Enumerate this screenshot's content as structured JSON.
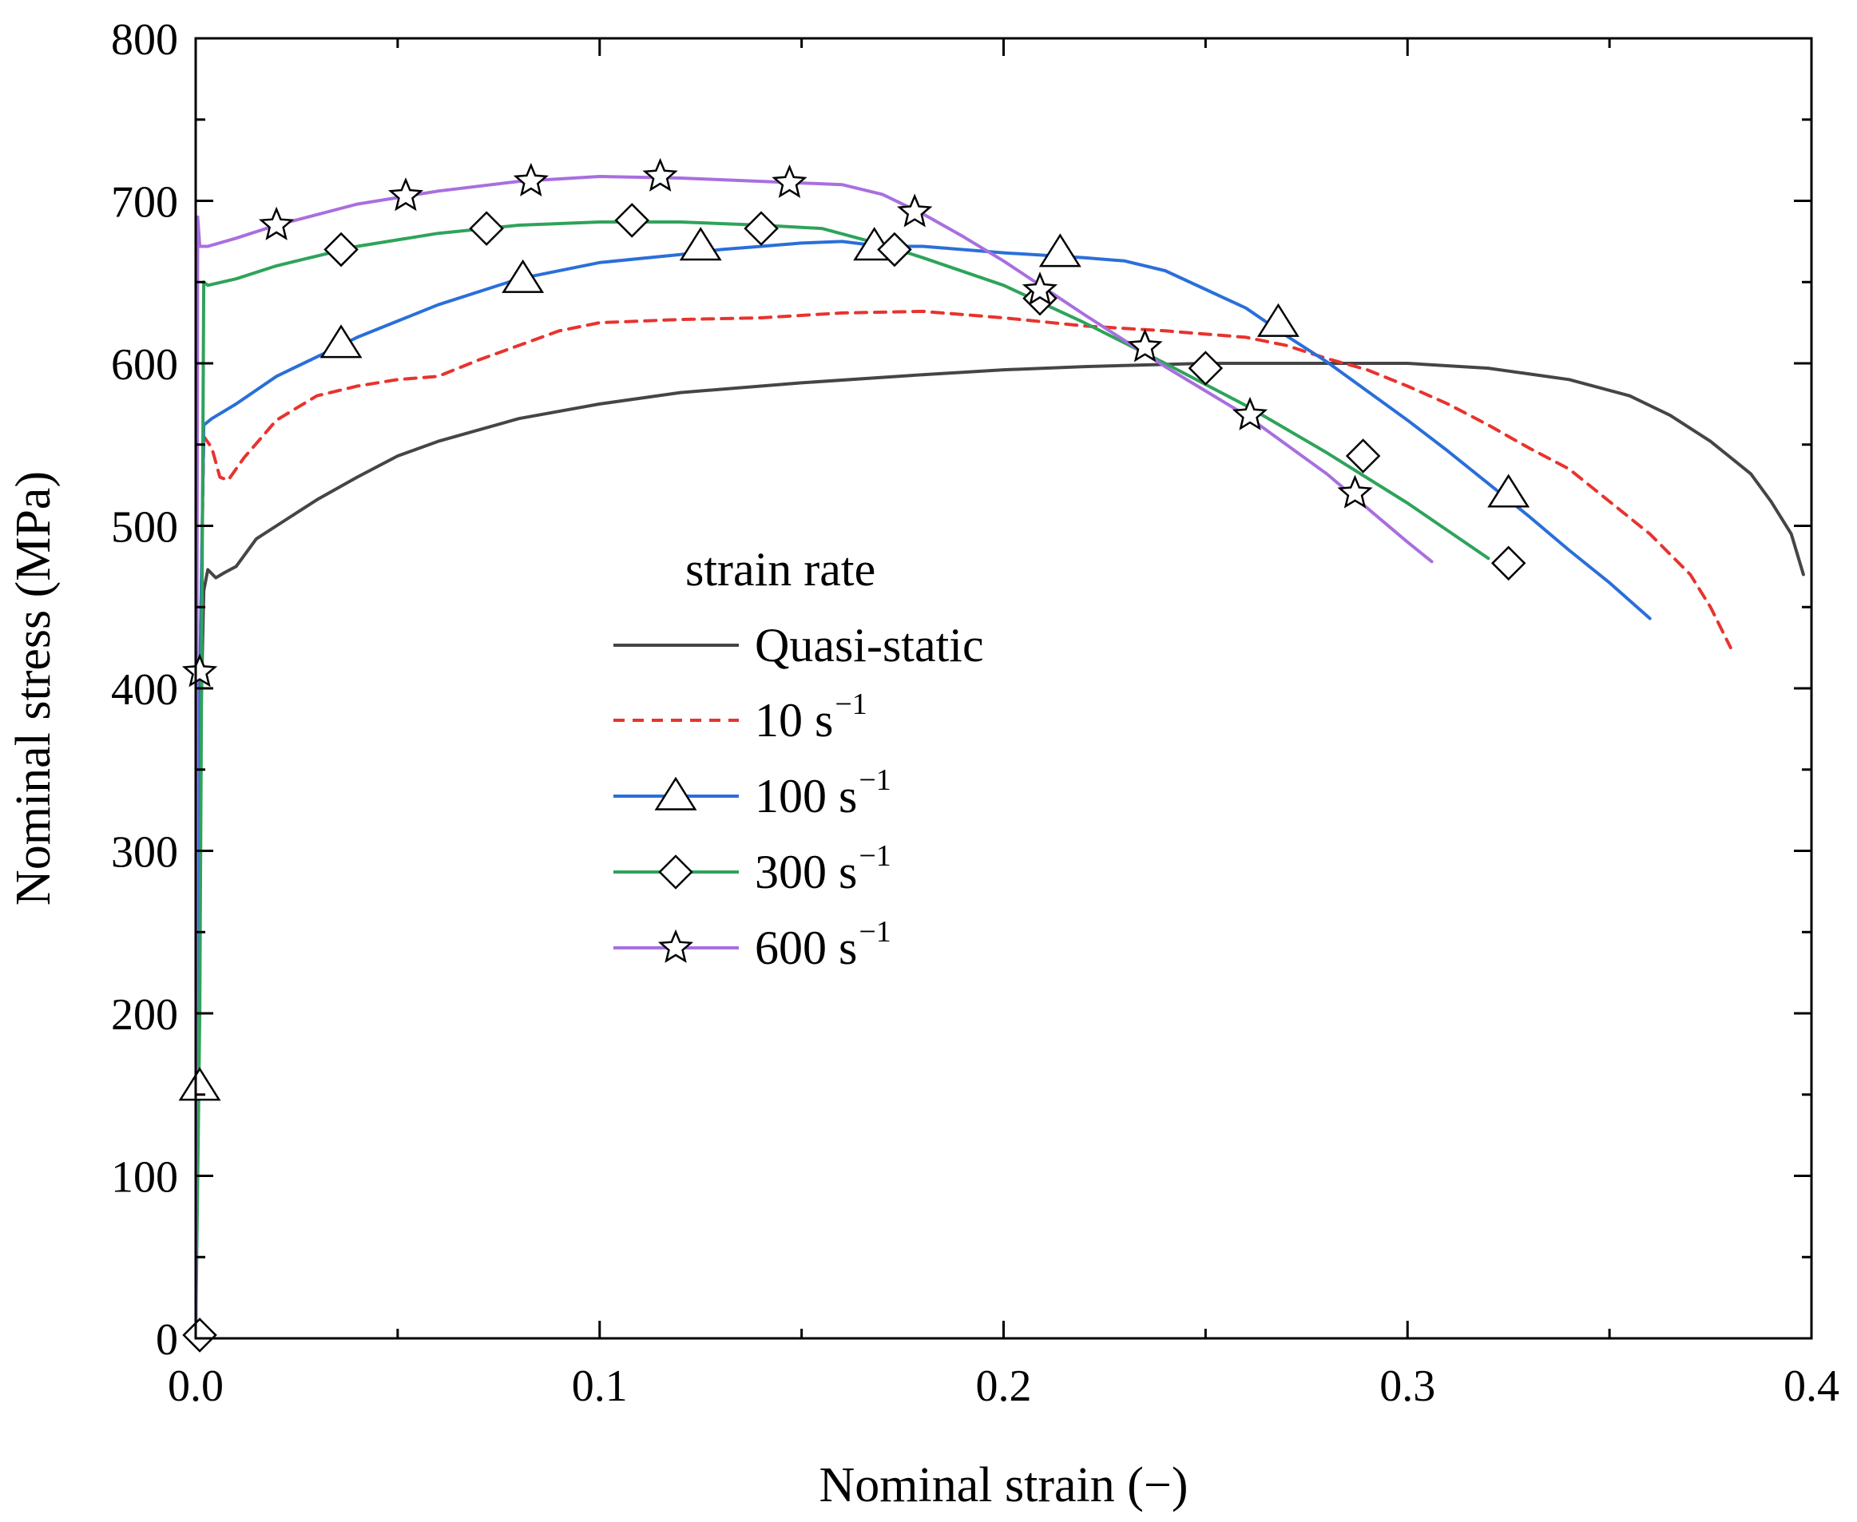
{
  "chart_data": {
    "type": "line",
    "title": "",
    "xlabel": "Nominal strain (−)",
    "ylabel": "Nominal stress (MPa)",
    "xlim": [
      0,
      0.4
    ],
    "ylim": [
      0,
      800
    ],
    "xticks": [
      "0.0",
      "0.1",
      "0.2",
      "0.3",
      "0.4"
    ],
    "yticks": [
      "0",
      "100",
      "200",
      "300",
      "400",
      "500",
      "600",
      "700",
      "800"
    ],
    "legend_title": "strain rate",
    "legend_position": "center-left",
    "series": [
      {
        "name": "Quasi-static",
        "unit": "",
        "color": "#454545",
        "dash": "solid",
        "marker": "none",
        "x": [
          0,
          0.001,
          0.002,
          0.003,
          0.005,
          0.007,
          0.01,
          0.015,
          0.02,
          0.03,
          0.04,
          0.05,
          0.06,
          0.08,
          0.1,
          0.12,
          0.15,
          0.18,
          0.2,
          0.22,
          0.25,
          0.28,
          0.3,
          0.32,
          0.34,
          0.355,
          0.365,
          0.375,
          0.385,
          0.39,
          0.395,
          0.398
        ],
        "y": [
          0,
          350,
          460,
          473,
          468,
          471,
          475,
          492,
          500,
          516,
          530,
          543,
          552,
          566,
          575,
          582,
          588,
          593,
          596,
          598,
          600,
          600,
          600,
          597,
          590,
          580,
          568,
          552,
          532,
          515,
          495,
          470
        ],
        "markers": []
      },
      {
        "name": "10 s",
        "unit": "−1",
        "color": "#e8332e",
        "dash": "dashed",
        "marker": "none",
        "x": [
          0,
          0.001,
          0.002,
          0.004,
          0.006,
          0.008,
          0.012,
          0.02,
          0.03,
          0.04,
          0.05,
          0.06,
          0.07,
          0.08,
          0.09,
          0.1,
          0.12,
          0.14,
          0.16,
          0.18,
          0.2,
          0.22,
          0.24,
          0.26,
          0.27,
          0.28,
          0.29,
          0.3,
          0.31,
          0.32,
          0.33,
          0.34,
          0.35,
          0.36,
          0.37,
          0.375,
          0.38
        ],
        "y": [
          0,
          400,
          555,
          548,
          530,
          528,
          542,
          565,
          580,
          586,
          590,
          592,
          602,
          611,
          620,
          625,
          627,
          628,
          631,
          632,
          628,
          623,
          620,
          616,
          611,
          603,
          596,
          586,
          575,
          562,
          548,
          535,
          515,
          495,
          470,
          450,
          425
        ],
        "markers": []
      },
      {
        "name": "100 s",
        "unit": "−1",
        "color": "#2a6fd9",
        "dash": "solid",
        "marker": "triangle",
        "x": [
          0,
          0.001,
          0.002,
          0.004,
          0.01,
          0.02,
          0.03,
          0.04,
          0.06,
          0.08,
          0.1,
          0.12,
          0.13,
          0.14,
          0.15,
          0.16,
          0.17,
          0.18,
          0.2,
          0.22,
          0.23,
          0.24,
          0.26,
          0.27,
          0.28,
          0.29,
          0.3,
          0.31,
          0.32,
          0.33,
          0.34,
          0.35,
          0.36
        ],
        "y": [
          0,
          400,
          562,
          566,
          575,
          592,
          604,
          616,
          636,
          652,
          662,
          667,
          670,
          672,
          674,
          675,
          672,
          672,
          668,
          665,
          663,
          657,
          634,
          617,
          601,
          583,
          565,
          546,
          526,
          506,
          485,
          465,
          443
        ],
        "markers": [
          [
            0.001,
            155
          ],
          [
            0.036,
            612
          ],
          [
            0.081,
            652
          ],
          [
            0.125,
            672
          ],
          [
            0.168,
            672
          ],
          [
            0.214,
            668
          ],
          [
            0.268,
            625
          ],
          [
            0.325,
            520
          ]
        ]
      },
      {
        "name": "300 s",
        "unit": "−1",
        "color": "#2ea35a",
        "dash": "solid",
        "marker": "diamond",
        "x": [
          0,
          0.001,
          0.002,
          0.003,
          0.01,
          0.02,
          0.04,
          0.06,
          0.08,
          0.1,
          0.12,
          0.14,
          0.155,
          0.17,
          0.18,
          0.2,
          0.22,
          0.24,
          0.26,
          0.28,
          0.3,
          0.31,
          0.32
        ],
        "y": [
          0,
          200,
          650,
          648,
          652,
          660,
          672,
          680,
          685,
          687,
          687,
          685,
          683,
          673,
          665,
          648,
          625,
          600,
          574,
          545,
          514,
          497,
          480
        ],
        "markers": [
          [
            0.001,
            2
          ],
          [
            0.036,
            670
          ],
          [
            0.072,
            683
          ],
          [
            0.108,
            688
          ],
          [
            0.14,
            683
          ],
          [
            0.173,
            670
          ],
          [
            0.209,
            640
          ],
          [
            0.25,
            597
          ],
          [
            0.289,
            543
          ],
          [
            0.325,
            477
          ]
        ]
      },
      {
        "name": "600 s",
        "unit": "−1",
        "color": "#a86fdf",
        "dash": "solid",
        "marker": "star",
        "x": [
          0,
          0.0005,
          0.001,
          0.003,
          0.01,
          0.02,
          0.04,
          0.06,
          0.08,
          0.1,
          0.12,
          0.14,
          0.16,
          0.17,
          0.18,
          0.19,
          0.2,
          0.22,
          0.24,
          0.26,
          0.28,
          0.3,
          0.306
        ],
        "y": [
          0,
          690,
          672,
          672,
          677,
          685,
          698,
          706,
          712,
          715,
          714,
          712,
          710,
          704,
          692,
          678,
          663,
          630,
          598,
          568,
          532,
          490,
          478
        ],
        "markers": [
          [
            0.001,
            410
          ],
          [
            0.02,
            685
          ],
          [
            0.052,
            703
          ],
          [
            0.083,
            712
          ],
          [
            0.115,
            715
          ],
          [
            0.147,
            711
          ],
          [
            0.178,
            693
          ],
          [
            0.209,
            645
          ],
          [
            0.235,
            610
          ],
          [
            0.261,
            568
          ],
          [
            0.287,
            520
          ]
        ]
      }
    ]
  }
}
